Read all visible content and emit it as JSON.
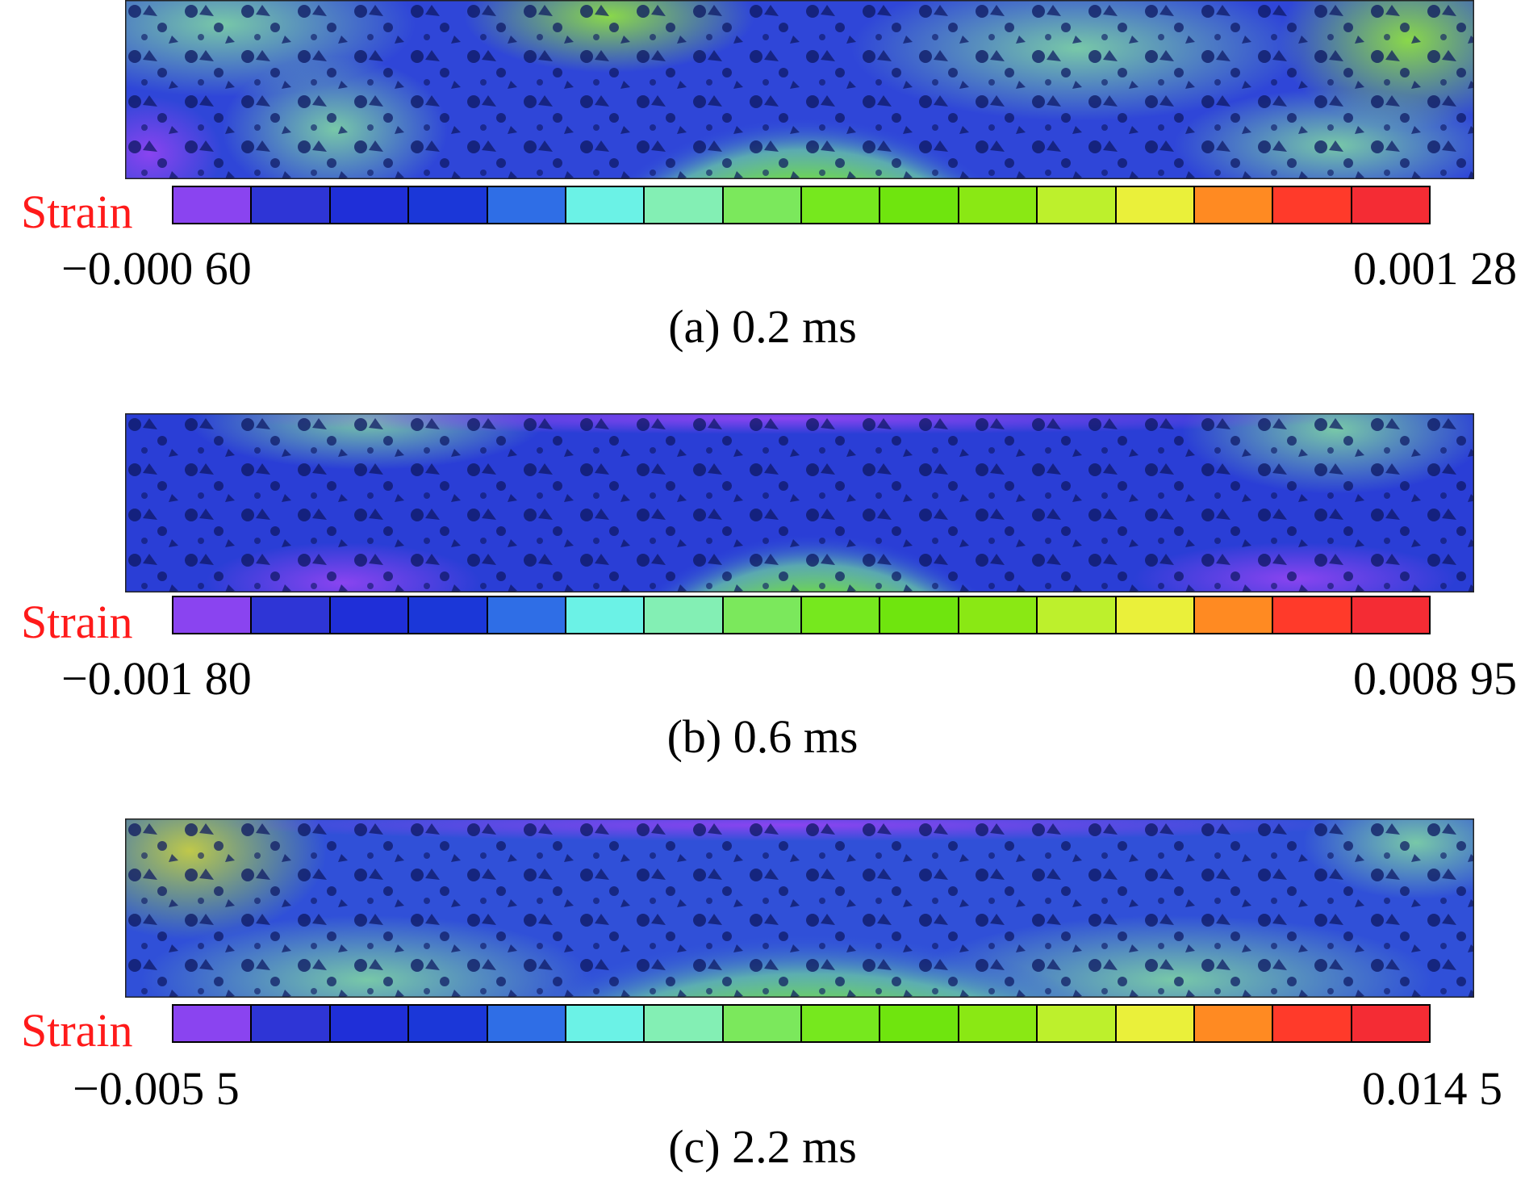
{
  "colorbar_colors": [
    "#8a44f0",
    "#2e35d6",
    "#1f2fd8",
    "#1b37d8",
    "#2f6ee6",
    "#6bf2e6",
    "#83efb4",
    "#7be85c",
    "#76e81e",
    "#6fe50e",
    "#8ae814",
    "#bdf02c",
    "#eaf03a",
    "#ff8a22",
    "#ff3a2a",
    "#f42c34"
  ],
  "panels": [
    {
      "strain_label": "Strain",
      "min": "−0.000 60",
      "max": "0.001 28",
      "caption": "(a) 0.2 ms"
    },
    {
      "strain_label": "Strain",
      "min": "−0.001 80",
      "max": "0.008 95",
      "caption": "(b) 0.6 ms"
    },
    {
      "strain_label": "Strain",
      "min": "−0.005 5",
      "max": "0.014 5",
      "caption": "(c) 2.2 ms"
    }
  ]
}
